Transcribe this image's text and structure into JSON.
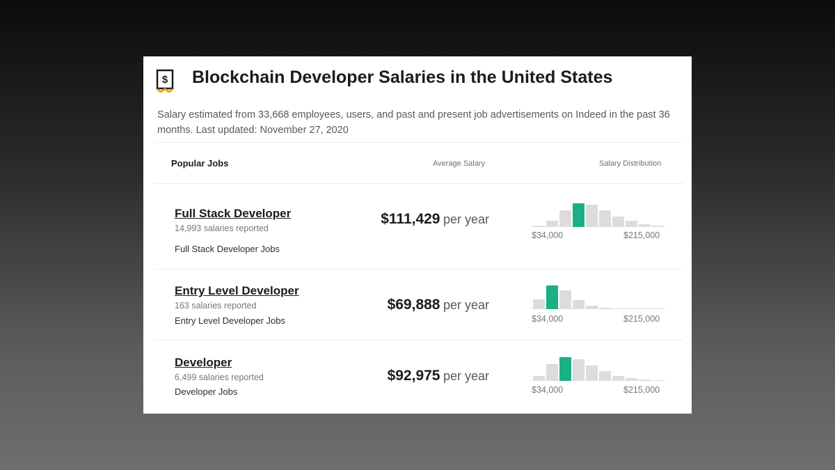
{
  "header": {
    "icon": "salary-receipt-icon",
    "title": "Blockchain Developer Salaries in the United States",
    "subtitle": "Salary estimated from 33,668 employees, users, and past and present job advertisements on Indeed in the past 36 months. Last updated: November 27, 2020"
  },
  "columns": {
    "popular_jobs": "Popular Jobs",
    "average_salary": "Average Salary",
    "salary_distribution": "Salary Distribution"
  },
  "accent_color": "#1aaf85",
  "jobs": [
    {
      "title": "Full Stack Developer",
      "count": "14,993 salaries reported",
      "link": "Full Stack Developer Jobs",
      "amount": "$111,429",
      "period": "per year",
      "range_min": "$34,000",
      "range_max": "$215,000",
      "distribution": [
        0.05,
        0.25,
        0.72,
        1.0,
        0.95,
        0.7,
        0.45,
        0.25,
        0.12,
        0.05
      ],
      "active_bin": 3
    },
    {
      "title": "Entry Level Developer",
      "count": "163 salaries reported",
      "link": "Entry Level Developer Jobs",
      "amount": "$69,888",
      "period": "per year",
      "range_min": "$34,000",
      "range_max": "$215,000",
      "distribution": [
        0.4,
        1.0,
        0.78,
        0.38,
        0.15,
        0.05,
        0.02,
        0.02,
        0.02,
        0.02
      ],
      "active_bin": 1
    },
    {
      "title": "Developer",
      "count": "6,499 salaries reported",
      "link": "Developer Jobs",
      "amount": "$92,975",
      "period": "per year",
      "range_min": "$34,000",
      "range_max": "$215,000",
      "distribution": [
        0.2,
        0.7,
        1.0,
        0.92,
        0.65,
        0.42,
        0.22,
        0.12,
        0.06,
        0.03
      ],
      "active_bin": 2
    }
  ]
}
